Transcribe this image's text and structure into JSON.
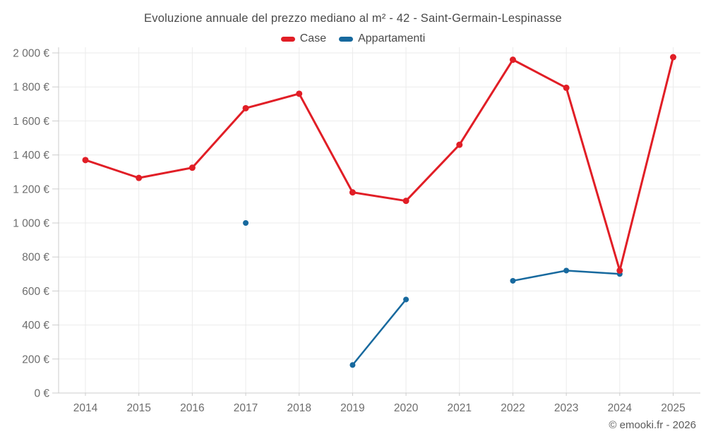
{
  "header": {
    "title": "Evoluzione annuale del prezzo mediano al m² - 42 - Saint-Germain-Lespinasse"
  },
  "footer": {
    "credit": "© emooki.fr - 2026"
  },
  "colors": {
    "case": "#e11e26",
    "appartamenti": "#17699e",
    "grid": "#ebebeb",
    "axis": "#cccccc",
    "tick_text": "#6d6d6d",
    "title_text": "#4a4a4a",
    "footer_text": "#5b5b5b"
  },
  "chart_data": {
    "type": "line",
    "title": "Evoluzione annuale del prezzo mediano al m² - 42 - Saint-Germain-Lespinasse",
    "categories": [
      "2014",
      "2015",
      "2016",
      "2017",
      "2018",
      "2019",
      "2020",
      "2021",
      "2022",
      "2023",
      "2024",
      "2025"
    ],
    "series": [
      {
        "name": "Case",
        "color": "#e11e26",
        "values": [
          1370,
          1265,
          1325,
          1675,
          1760,
          1180,
          1130,
          1460,
          1960,
          1795,
          720,
          1975
        ]
      },
      {
        "name": "Appartamenti",
        "color": "#17699e",
        "values": [
          null,
          null,
          null,
          1000,
          null,
          165,
          550,
          null,
          660,
          720,
          700,
          null
        ]
      }
    ],
    "xlabel": "",
    "ylabel": "",
    "ylim": [
      0,
      2000
    ],
    "ytick_step": 200,
    "ytick_suffix": " €",
    "grid": true,
    "legend_position": "top",
    "annotations": [
      "© emooki.fr - 2026"
    ]
  }
}
